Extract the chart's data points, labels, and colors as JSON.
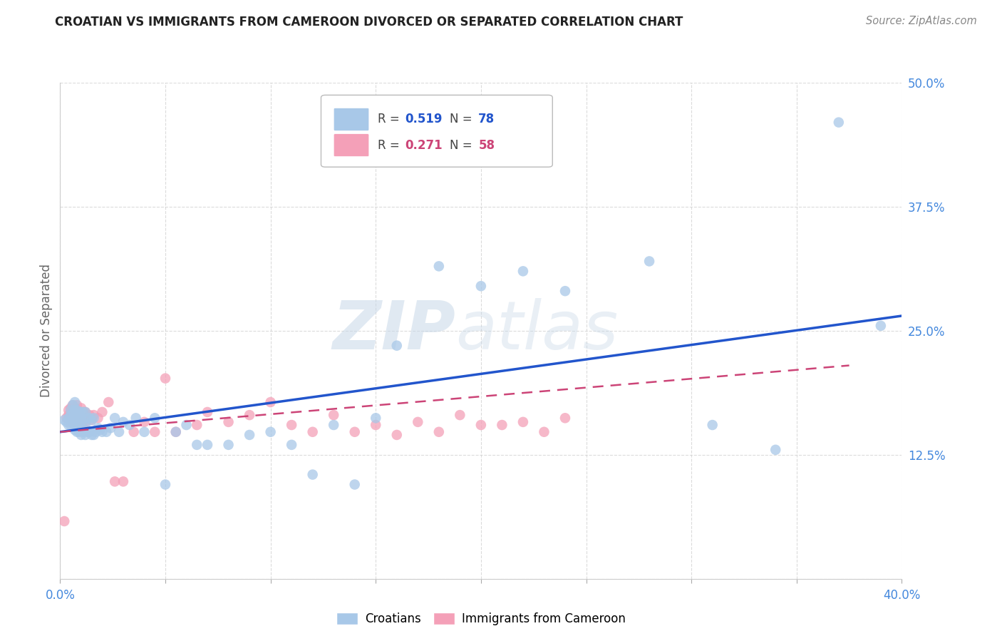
{
  "title": "CROATIAN VS IMMIGRANTS FROM CAMEROON DIVORCED OR SEPARATED CORRELATION CHART",
  "source": "Source: ZipAtlas.com",
  "ylabel": "Divorced or Separated",
  "xlim": [
    0.0,
    0.4
  ],
  "ylim": [
    0.0,
    0.5
  ],
  "xticks": [
    0.0,
    0.05,
    0.1,
    0.15,
    0.2,
    0.25,
    0.3,
    0.35,
    0.4
  ],
  "yticks": [
    0.0,
    0.125,
    0.25,
    0.375,
    0.5
  ],
  "xticklabels_show": [
    "0.0%",
    "",
    "",
    "",
    "",
    "",
    "",
    "",
    "40.0%"
  ],
  "yticklabels_right": [
    "",
    "12.5%",
    "25.0%",
    "37.5%",
    "50.0%"
  ],
  "blue_R": "0.519",
  "blue_N": "78",
  "pink_R": "0.271",
  "pink_N": "58",
  "blue_color": "#a8c8e8",
  "pink_color": "#f4a0b8",
  "blue_line_color": "#2255cc",
  "pink_line_color": "#cc4477",
  "watermark_zip": "ZIP",
  "watermark_atlas": "atlas",
  "background_color": "#ffffff",
  "grid_color": "#cccccc",
  "title_color": "#222222",
  "source_color": "#888888",
  "tick_label_color": "#4488dd",
  "ylabel_color": "#666666",
  "blue_scatter_x": [
    0.002,
    0.003,
    0.004,
    0.004,
    0.005,
    0.005,
    0.005,
    0.006,
    0.006,
    0.006,
    0.006,
    0.007,
    0.007,
    0.007,
    0.007,
    0.007,
    0.008,
    0.008,
    0.008,
    0.008,
    0.009,
    0.009,
    0.009,
    0.009,
    0.01,
    0.01,
    0.01,
    0.01,
    0.011,
    0.011,
    0.011,
    0.012,
    0.012,
    0.012,
    0.013,
    0.013,
    0.014,
    0.014,
    0.015,
    0.015,
    0.016,
    0.016,
    0.017,
    0.018,
    0.019,
    0.02,
    0.022,
    0.024,
    0.026,
    0.028,
    0.03,
    0.033,
    0.036,
    0.04,
    0.045,
    0.05,
    0.055,
    0.06,
    0.065,
    0.07,
    0.08,
    0.09,
    0.1,
    0.11,
    0.12,
    0.13,
    0.14,
    0.15,
    0.16,
    0.18,
    0.2,
    0.22,
    0.24,
    0.28,
    0.31,
    0.34,
    0.37,
    0.39
  ],
  "blue_scatter_y": [
    0.16,
    0.158,
    0.155,
    0.162,
    0.155,
    0.165,
    0.17,
    0.158,
    0.162,
    0.168,
    0.175,
    0.15,
    0.158,
    0.165,
    0.17,
    0.178,
    0.148,
    0.155,
    0.162,
    0.17,
    0.148,
    0.155,
    0.162,
    0.168,
    0.145,
    0.152,
    0.16,
    0.168,
    0.148,
    0.158,
    0.168,
    0.145,
    0.155,
    0.168,
    0.148,
    0.162,
    0.148,
    0.162,
    0.145,
    0.16,
    0.145,
    0.162,
    0.148,
    0.152,
    0.15,
    0.148,
    0.148,
    0.152,
    0.162,
    0.148,
    0.158,
    0.155,
    0.162,
    0.148,
    0.162,
    0.095,
    0.148,
    0.155,
    0.135,
    0.135,
    0.135,
    0.145,
    0.148,
    0.135,
    0.105,
    0.155,
    0.095,
    0.162,
    0.235,
    0.315,
    0.295,
    0.31,
    0.29,
    0.32,
    0.155,
    0.13,
    0.46,
    0.255
  ],
  "pink_scatter_x": [
    0.002,
    0.003,
    0.004,
    0.004,
    0.005,
    0.005,
    0.005,
    0.006,
    0.006,
    0.006,
    0.007,
    0.007,
    0.007,
    0.008,
    0.008,
    0.008,
    0.009,
    0.009,
    0.01,
    0.01,
    0.01,
    0.011,
    0.011,
    0.012,
    0.012,
    0.013,
    0.014,
    0.015,
    0.016,
    0.018,
    0.02,
    0.023,
    0.026,
    0.03,
    0.035,
    0.04,
    0.045,
    0.05,
    0.055,
    0.065,
    0.07,
    0.08,
    0.09,
    0.1,
    0.11,
    0.12,
    0.13,
    0.14,
    0.15,
    0.16,
    0.17,
    0.18,
    0.19,
    0.2,
    0.21,
    0.22,
    0.23,
    0.24
  ],
  "pink_scatter_y": [
    0.058,
    0.162,
    0.165,
    0.17,
    0.158,
    0.165,
    0.172,
    0.162,
    0.168,
    0.175,
    0.158,
    0.165,
    0.172,
    0.158,
    0.168,
    0.175,
    0.158,
    0.168,
    0.155,
    0.165,
    0.172,
    0.158,
    0.168,
    0.158,
    0.168,
    0.162,
    0.165,
    0.16,
    0.165,
    0.162,
    0.168,
    0.178,
    0.098,
    0.098,
    0.148,
    0.158,
    0.148,
    0.202,
    0.148,
    0.155,
    0.168,
    0.158,
    0.165,
    0.178,
    0.155,
    0.148,
    0.165,
    0.148,
    0.155,
    0.145,
    0.158,
    0.148,
    0.165,
    0.155,
    0.155,
    0.158,
    0.148,
    0.162
  ],
  "blue_line_start_x": 0.0,
  "blue_line_end_x": 0.4,
  "blue_line_start_y": 0.148,
  "blue_line_end_y": 0.265,
  "pink_line_start_x": 0.0,
  "pink_line_end_x": 0.375,
  "pink_line_start_y": 0.148,
  "pink_line_end_y": 0.215
}
